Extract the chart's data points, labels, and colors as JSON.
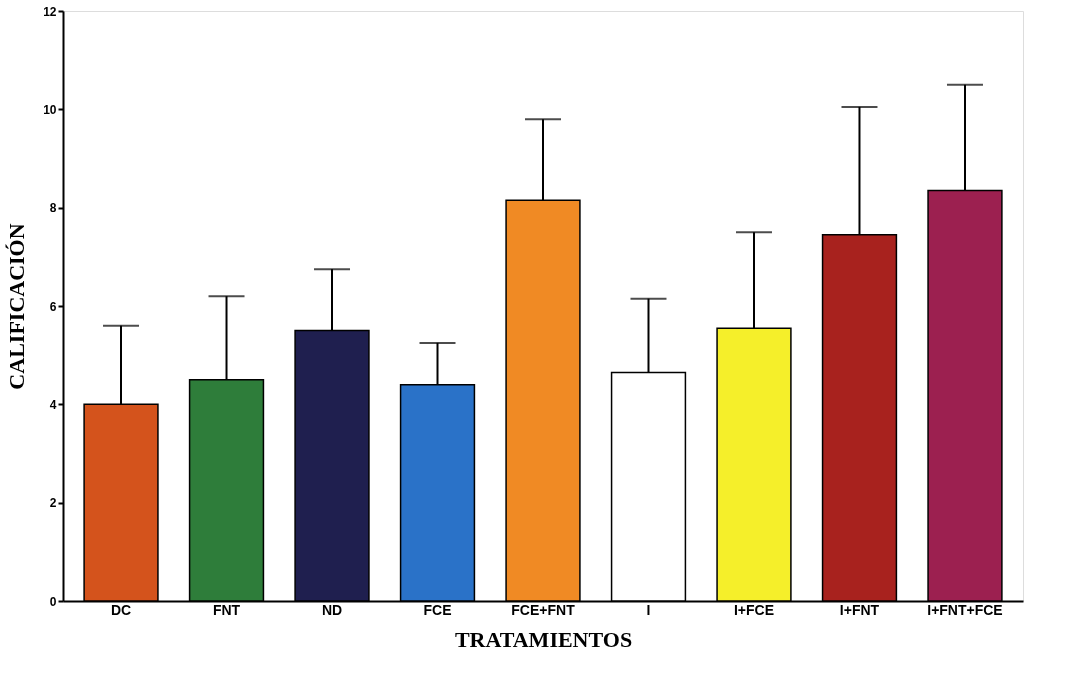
{
  "chart_data": {
    "type": "bar",
    "xlabel": "TRATAMIENTOS",
    "ylabel": "CALIFICACIÓN",
    "categories": [
      "DC",
      "FNT",
      "ND",
      "FCE",
      "FCE+FNT",
      "I",
      "I+FCE",
      "I+FNT",
      "I+FNT+FCE"
    ],
    "values": [
      4.0,
      4.5,
      5.5,
      4.4,
      8.15,
      4.65,
      5.55,
      7.45,
      8.35
    ],
    "colors": [
      "#d4531c",
      "#2e7d3a",
      "#1f1f4f",
      "#2a72c8",
      "#f08a24",
      "#ffffff",
      "#f5ef2a",
      "#a8221e",
      "#9c2050"
    ],
    "errors": [
      [
        4.0,
        5.6
      ],
      [
        4.5,
        6.2
      ],
      [
        5.5,
        6.75
      ],
      [
        4.4,
        5.25
      ],
      [
        8.15,
        9.8
      ],
      [
        4.65,
        6.15
      ],
      [
        5.55,
        7.5
      ],
      [
        7.45,
        10.05
      ],
      [
        8.35,
        10.5
      ]
    ],
    "ylim": [
      0,
      12
    ],
    "yticks": [
      0,
      2,
      4,
      6,
      8,
      10,
      12
    ],
    "grid": false
  }
}
